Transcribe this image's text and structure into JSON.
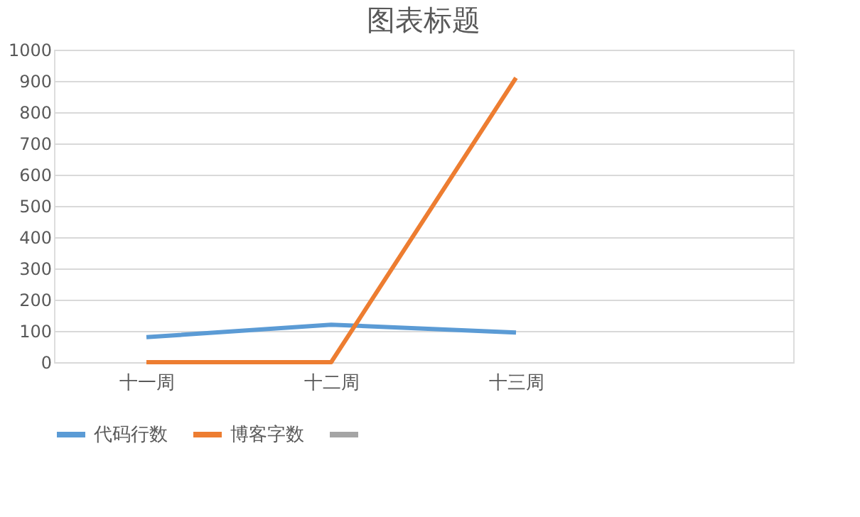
{
  "chart_data": {
    "type": "line",
    "title": "图表标题",
    "categories": [
      "十一周",
      "十二周",
      "十三周",
      null
    ],
    "series": [
      {
        "name": "代码行数",
        "color": "#5b9bd5",
        "values": [
          80,
          120,
          95,
          null
        ]
      },
      {
        "name": "博客字数",
        "color": "#ed7d31",
        "values": [
          0,
          0,
          910,
          null
        ]
      },
      {
        "color": "#a5a5a5",
        "values": [
          null,
          null,
          null,
          null
        ]
      }
    ],
    "ylim": [
      0,
      1000
    ],
    "yticks": [
      0,
      100,
      200,
      300,
      400,
      500,
      600,
      700,
      800,
      900,
      1000
    ],
    "grid": "y",
    "legend": "bottom",
    "marker": "none",
    "line_style": "solid"
  }
}
